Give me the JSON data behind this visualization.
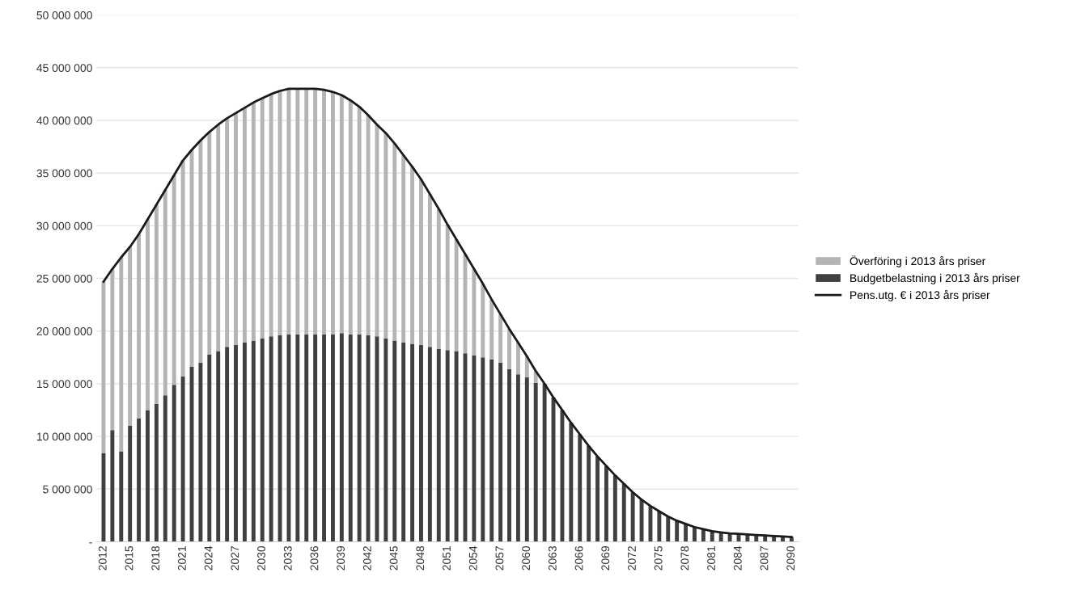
{
  "chart_data": {
    "type": "bar",
    "stacked": true,
    "categories": [
      "2012",
      null,
      null,
      "2015",
      null,
      null,
      "2018",
      null,
      null,
      "2021",
      null,
      null,
      "2024",
      null,
      null,
      "2027",
      null,
      null,
      "2030",
      null,
      null,
      "2033",
      null,
      null,
      "2036",
      null,
      null,
      "2039",
      null,
      null,
      "2042",
      null,
      null,
      "2045",
      null,
      null,
      "2048",
      null,
      null,
      "2051",
      null,
      null,
      "2054",
      null,
      null,
      "2057",
      null,
      null,
      "2060",
      null,
      null,
      "2063",
      null,
      null,
      "2066",
      null,
      null,
      "2069",
      null,
      null,
      "2072",
      null,
      null,
      "2075",
      null,
      null,
      "2078",
      null,
      null,
      "2081",
      null,
      null,
      "2084",
      null,
      null,
      "2087",
      null,
      null,
      "2090"
    ],
    "series": [
      {
        "name": "Budgetbelastning i 2013 års priser",
        "color": "#404040",
        "values": [
          8400000,
          10600000,
          8600000,
          11000000,
          11700000,
          12500000,
          13100000,
          13900000,
          14900000,
          15700000,
          16600000,
          17000000,
          17800000,
          18100000,
          18500000,
          18700000,
          18900000,
          19100000,
          19300000,
          19500000,
          19600000,
          19700000,
          19700000,
          19700000,
          19700000,
          19700000,
          19700000,
          19800000,
          19700000,
          19700000,
          19600000,
          19500000,
          19300000,
          19100000,
          18900000,
          18800000,
          18700000,
          18500000,
          18300000,
          18200000,
          18100000,
          17900000,
          17700000,
          17500000,
          17300000,
          17000000,
          16400000,
          15900000,
          15600000,
          15100000,
          15000000,
          13700000,
          12500000,
          11300000,
          10200000,
          9100000,
          8100000,
          7200000,
          6300000,
          5500000,
          4700000,
          4000000,
          3400000,
          2900000,
          2400000,
          2000000,
          1700000,
          1400000,
          1200000,
          1000000,
          900000,
          800000,
          750000,
          700000,
          650000,
          600000,
          550000,
          500000,
          450000
        ]
      },
      {
        "name": "Överföring i 2013 års priser",
        "color": "#b4b4b4",
        "values": [
          16300000,
          15300000,
          18400000,
          17000000,
          17500000,
          18100000,
          18900000,
          19500000,
          19900000,
          20500000,
          20600000,
          21100000,
          21100000,
          21500000,
          21700000,
          22000000,
          22300000,
          22600000,
          22800000,
          23000000,
          23200000,
          23300000,
          23300000,
          23300000,
          23300000,
          23200000,
          23000000,
          22600000,
          22200000,
          21600000,
          20900000,
          20100000,
          19500000,
          18700000,
          17800000,
          16800000,
          15700000,
          14500000,
          13300000,
          11900000,
          10600000,
          9400000,
          8200000,
          7000000,
          5700000,
          4600000,
          3800000,
          3000000,
          2000000,
          1100000,
          0,
          0,
          0,
          0,
          0,
          0,
          0,
          0,
          0,
          0,
          0,
          0,
          0,
          0,
          0,
          0,
          0,
          0,
          0,
          0,
          0,
          0,
          0,
          0,
          0,
          0,
          0,
          0,
          0
        ]
      },
      {
        "name": "Pens.utg. € i 2013 års priser",
        "color": "#1a1a1a",
        "type": "line",
        "values": [
          24700000,
          25900000,
          27000000,
          28000000,
          29200000,
          30600000,
          32000000,
          33400000,
          34800000,
          36200000,
          37200000,
          38100000,
          38900000,
          39600000,
          40200000,
          40700000,
          41200000,
          41700000,
          42100000,
          42500000,
          42800000,
          43000000,
          43000000,
          43000000,
          43000000,
          42900000,
          42700000,
          42400000,
          41900000,
          41300000,
          40500000,
          39600000,
          38800000,
          37800000,
          36700000,
          35600000,
          34400000,
          33000000,
          31600000,
          30100000,
          28700000,
          27300000,
          25900000,
          24500000,
          23000000,
          21600000,
          20200000,
          18900000,
          17600000,
          16200000,
          15000000,
          13700000,
          12500000,
          11300000,
          10200000,
          9100000,
          8100000,
          7200000,
          6300000,
          5500000,
          4700000,
          4000000,
          3400000,
          2900000,
          2400000,
          2000000,
          1700000,
          1400000,
          1200000,
          1000000,
          900000,
          800000,
          750000,
          700000,
          650000,
          600000,
          550000,
          500000,
          450000
        ]
      }
    ],
    "ylim": [
      0,
      50000000
    ],
    "yticks": [
      {
        "value": 0,
        "label": "-"
      },
      {
        "value": 5000000,
        "label": "5 000 000"
      },
      {
        "value": 10000000,
        "label": "10 000 000"
      },
      {
        "value": 15000000,
        "label": "15 000 000"
      },
      {
        "value": 20000000,
        "label": "20 000 000"
      },
      {
        "value": 25000000,
        "label": "25 000 000"
      },
      {
        "value": 30000000,
        "label": "30 000 000"
      },
      {
        "value": 35000000,
        "label": "35 000 000"
      },
      {
        "value": 40000000,
        "label": "40 000 000"
      },
      {
        "value": 45000000,
        "label": "45 000 000"
      },
      {
        "value": 50000000,
        "label": "50 000 000"
      }
    ],
    "grid": "y",
    "legend": "right",
    "marker": "none",
    "line_style": "solid"
  }
}
